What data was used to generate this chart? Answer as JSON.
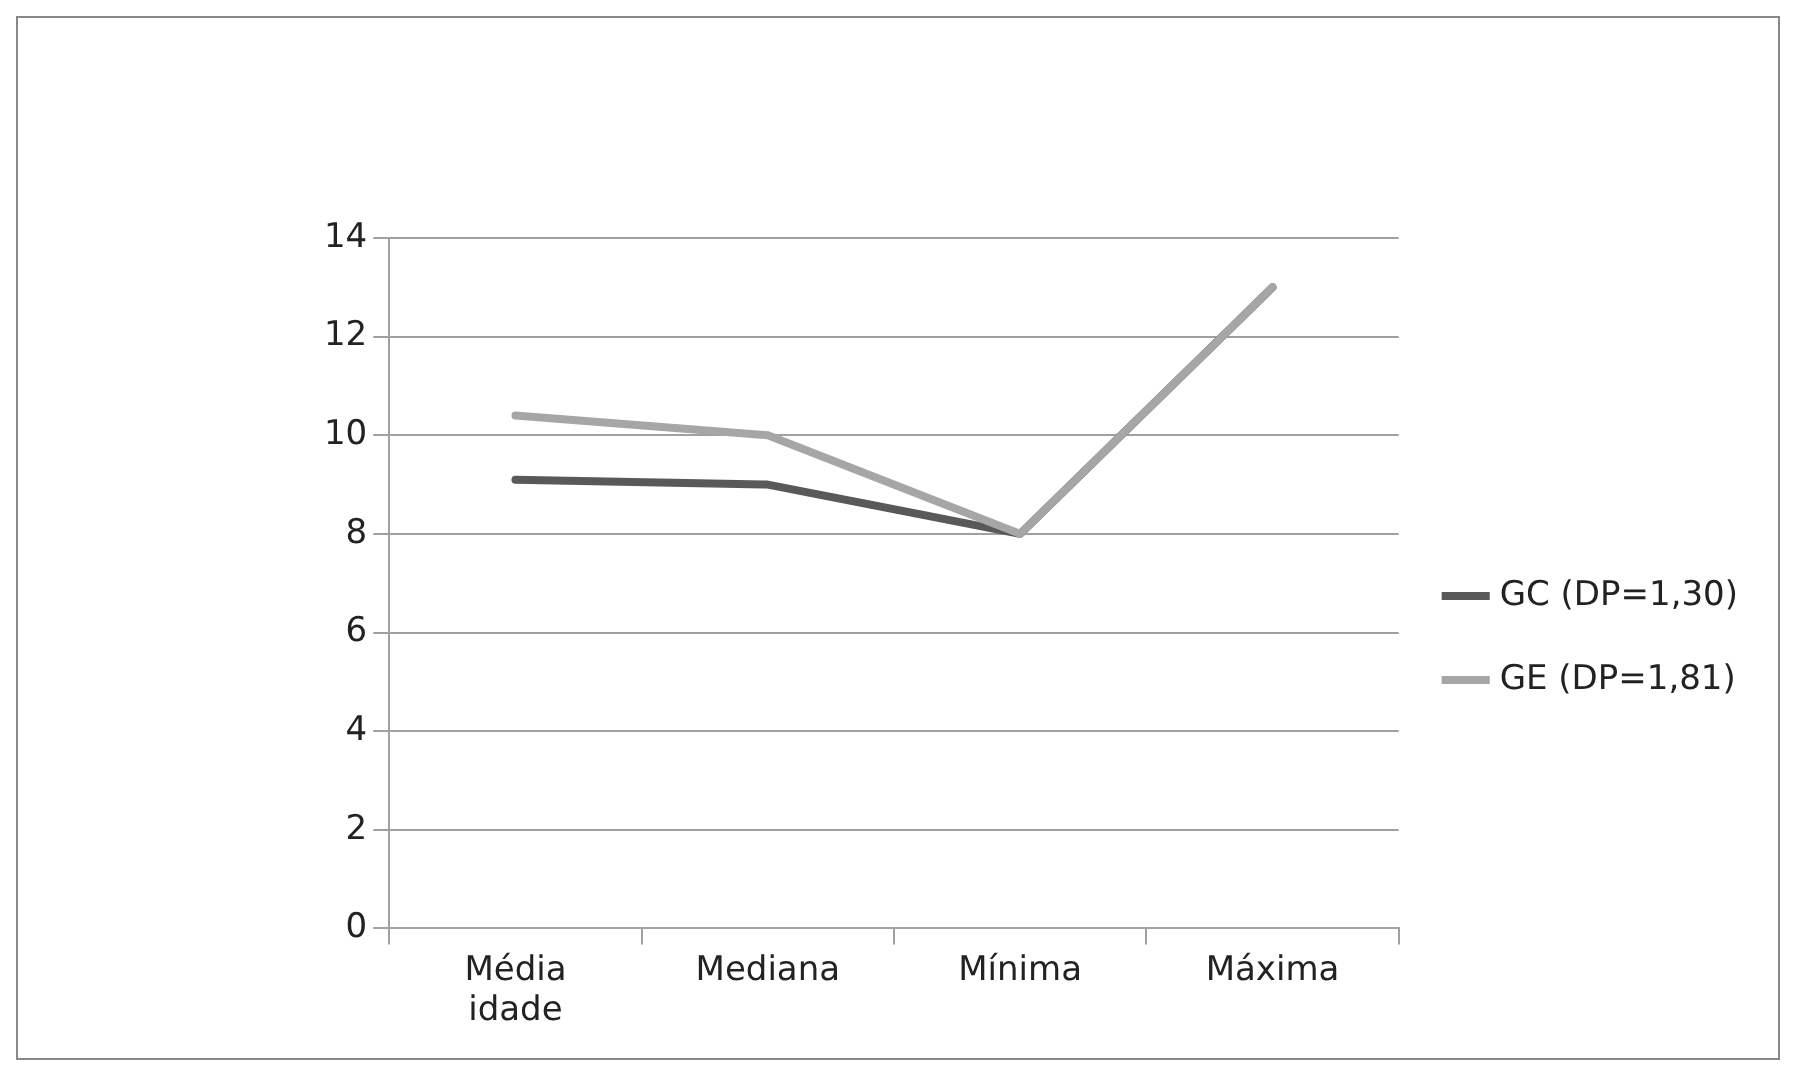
{
  "chart_data": {
    "type": "line",
    "categories": [
      "Média idade",
      "Mediana",
      "Mínima",
      "Máxima"
    ],
    "series": [
      {
        "name": "GC (DP=1,30)",
        "color": "#595959",
        "values": [
          9.1,
          9.0,
          8,
          13
        ]
      },
      {
        "name": "GE (DP=1,81)",
        "color": "#a6a6a6",
        "values": [
          10.4,
          10.0,
          8,
          13
        ]
      }
    ],
    "ylim": [
      0,
      14
    ],
    "yticks": [
      0,
      2,
      4,
      6,
      8,
      10,
      12,
      14
    ],
    "grid": "y",
    "legend": "right",
    "marker": "none",
    "line_style": "solid"
  }
}
